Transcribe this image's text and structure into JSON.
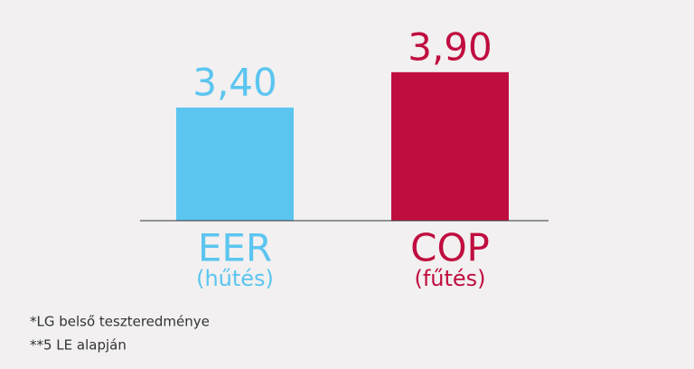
{
  "chart_data": {
    "type": "bar",
    "categories": [
      "EER",
      "COP"
    ],
    "subcategories": [
      "(hűtés)",
      "(fűtés)"
    ],
    "values": [
      3.4,
      3.9
    ],
    "value_labels": [
      "3,40",
      "3,90"
    ],
    "colors": [
      "#5bc5f0",
      "#c00d3f"
    ],
    "ylim": [
      1.8,
      4
    ]
  },
  "footnotes": [
    "*LG belső teszteredménye",
    "**5 LE alapján"
  ]
}
